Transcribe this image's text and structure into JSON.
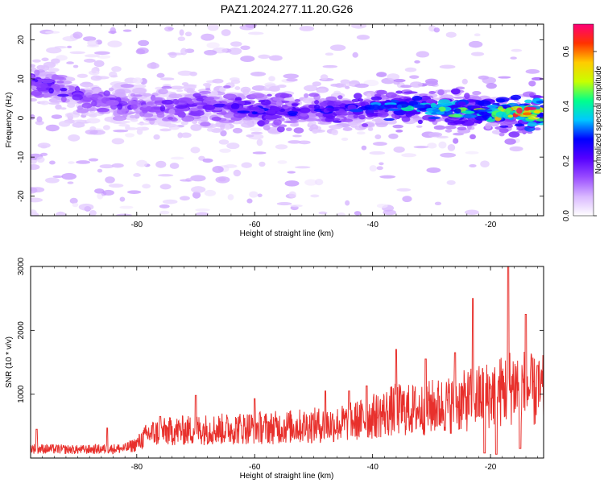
{
  "title": "PAZ1.2024.277.11.20.G26",
  "chart_data": [
    {
      "type": "heatmap",
      "xlabel": "Height of straight line (km)",
      "ylabel": "Frequency (Hz)",
      "xlim": [
        -98,
        -11
      ],
      "ylim": [
        -25,
        24
      ],
      "x_ticks": [
        -80,
        -60,
        -40,
        -20
      ],
      "y_ticks": [
        20,
        10,
        0,
        -10,
        -20
      ],
      "colorbar": {
        "label": "Normalized spectral amplitude",
        "range": [
          0,
          0.7
        ],
        "ticks": [
          0.0,
          0.2,
          0.4,
          0.6
        ],
        "colors": [
          "#ffffff",
          "#d9b8ff",
          "#9a4dff",
          "#5500ff",
          "#0000ff",
          "#00c8ff",
          "#00ff8c",
          "#c8ff00",
          "#ffcc00",
          "#ff3300",
          "#ff0077"
        ]
      },
      "ridge": {
        "x": [
          -97,
          -92,
          -88,
          -84,
          -80,
          -76,
          -72,
          -68,
          -64,
          -60,
          -56,
          -52,
          -48,
          -44,
          -40,
          -36,
          -32,
          -28,
          -24,
          -20,
          -16,
          -12
        ],
        "center_hz": [
          9,
          7,
          5,
          4,
          3.5,
          3,
          3,
          3,
          2.5,
          2,
          2,
          2,
          2,
          2.5,
          3,
          3,
          3,
          2.5,
          2,
          1.5,
          1.5,
          1.5
        ],
        "peak_amplitude": [
          0.25,
          0.22,
          0.18,
          0.2,
          0.18,
          0.2,
          0.22,
          0.22,
          0.25,
          0.28,
          0.3,
          0.28,
          0.26,
          0.28,
          0.32,
          0.4,
          0.42,
          0.45,
          0.45,
          0.5,
          0.65,
          0.7
        ]
      }
    },
    {
      "type": "line",
      "xlabel": "Height of straight line (km)",
      "ylabel": "SNR (10 * v/v)",
      "xlim": [
        -98,
        -11
      ],
      "ylim": [
        0,
        3000
      ],
      "x_ticks": [
        -80,
        -60,
        -40,
        -20
      ],
      "y_ticks": [
        1000,
        2000,
        3000
      ],
      "color": "#e8302c",
      "x": [
        -98,
        -94,
        -90,
        -86,
        -82,
        -80,
        -78,
        -76,
        -74,
        -72,
        -70,
        -68,
        -66,
        -64,
        -62,
        -60,
        -58,
        -56,
        -54,
        -52,
        -50,
        -48,
        -46,
        -44,
        -42,
        -40,
        -38,
        -36,
        -34,
        -32,
        -30,
        -28,
        -26,
        -24,
        -22,
        -20,
        -18,
        -16,
        -14,
        -12,
        -11
      ],
      "mean": [
        150,
        140,
        130,
        140,
        150,
        220,
        380,
        400,
        420,
        430,
        440,
        450,
        450,
        460,
        470,
        480,
        470,
        480,
        490,
        500,
        510,
        520,
        530,
        560,
        600,
        650,
        700,
        760,
        750,
        760,
        800,
        820,
        850,
        900,
        950,
        1000,
        1050,
        1150,
        1100,
        1000,
        1050
      ],
      "peaks": [
        {
          "x": -97,
          "y": 450
        },
        {
          "x": -85,
          "y": 470
        },
        {
          "x": -76,
          "y": 650
        },
        {
          "x": -70,
          "y": 980
        },
        {
          "x": -60,
          "y": 930
        },
        {
          "x": -48,
          "y": 1050
        },
        {
          "x": -44,
          "y": 1050
        },
        {
          "x": -41,
          "y": 1130
        },
        {
          "x": -36,
          "y": 1700
        },
        {
          "x": -31,
          "y": 1550
        },
        {
          "x": -26,
          "y": 1650
        },
        {
          "x": -23,
          "y": 2500
        },
        {
          "x": -17,
          "y": 3000
        },
        {
          "x": -14,
          "y": 2250
        },
        {
          "x": -12,
          "y": 1450
        }
      ],
      "troughs": [
        {
          "x": -21,
          "y": 80
        },
        {
          "x": -19,
          "y": 60
        },
        {
          "x": -15,
          "y": 150
        }
      ]
    }
  ]
}
